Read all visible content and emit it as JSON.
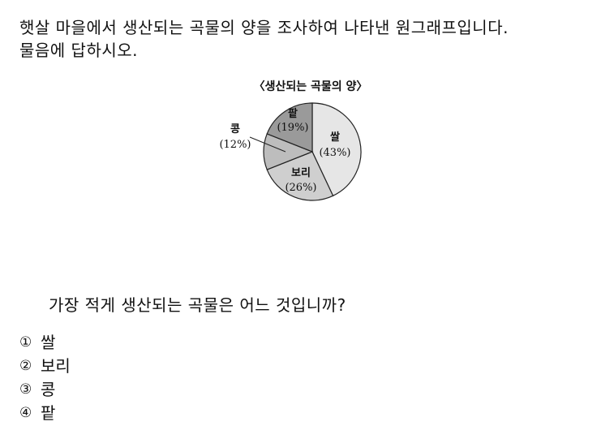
{
  "intro": {
    "line1": "햇살 마을에서 생산되는 곡물의 양을 조사하여 나타낸 원그래프입니다.",
    "line2": "물음에 답하시오."
  },
  "chart_data": {
    "type": "pie",
    "title": "〈생산되는 곡물의 양〉",
    "slices": [
      {
        "name": "쌀",
        "pct_label": "(43%)",
        "value": 43,
        "color": "#e6e6e6"
      },
      {
        "name": "보리",
        "pct_label": "(26%)",
        "value": 26,
        "color": "#cfcfcf"
      },
      {
        "name": "콩",
        "pct_label": "(12%)",
        "value": 12,
        "color": "#bdbdbd"
      },
      {
        "name": "팥",
        "pct_label": "(19%)",
        "value": 19,
        "color": "#9a9a9a"
      }
    ],
    "start": "top",
    "direction": "clockwise"
  },
  "question": "가장 적게 생산되는 곡물은 어느 것입니까?",
  "options": [
    {
      "num": "①",
      "text": "쌀"
    },
    {
      "num": "②",
      "text": "보리"
    },
    {
      "num": "③",
      "text": "콩"
    },
    {
      "num": "④",
      "text": "팥"
    }
  ]
}
